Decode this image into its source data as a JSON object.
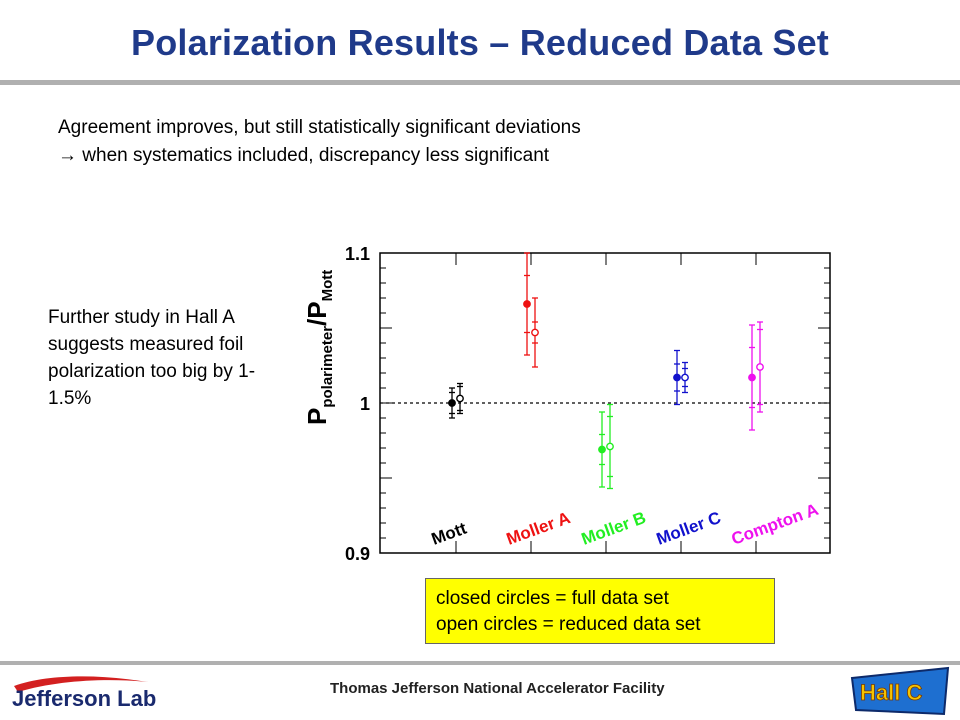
{
  "slide": {
    "title": "Polarization Results – Reduced Data Set",
    "intro_line1": "Agreement improves, but still statistically significant deviations",
    "intro_line2": "→ when systematics included, discrepancy less significant",
    "side_note": "Further study in Hall A suggests measured foil polarization too big by 1-1.5%",
    "legend_line1": "closed circles = full data set",
    "legend_line2": "open circles = reduced data set",
    "footer": "Thomas Jefferson National Accelerator Facility",
    "logo_left": "Jefferson Lab",
    "logo_right": "Hall C"
  },
  "chart_data": {
    "type": "scatter",
    "ylabel_main": "P",
    "ylabel_sub1": "polarimeter",
    "ylabel_slash": "/P",
    "ylabel_sub2": "Mott",
    "ylim": [
      0.9,
      1.1
    ],
    "yticks": [
      "1.1",
      "1",
      "0.9"
    ],
    "reference_line": 1.0,
    "categories": [
      {
        "label": "Mott",
        "color": "#000000"
      },
      {
        "label": "Moller A",
        "color": "#ee1111"
      },
      {
        "label": "Moller B",
        "color": "#22ee22"
      },
      {
        "label": "Moller C",
        "color": "#1111cc"
      },
      {
        "label": "Compton A",
        "color": "#ee11ee"
      }
    ],
    "series": [
      {
        "name": "full data set",
        "marker": "closed",
        "values": [
          1.0,
          1.066,
          0.969,
          1.017,
          1.017
        ],
        "err_stat": [
          0.007,
          0.019,
          0.01,
          0.009,
          0.02
        ],
        "err_tot": [
          0.01,
          0.034,
          0.025,
          0.018,
          0.035
        ]
      },
      {
        "name": "reduced data set",
        "marker": "open",
        "values": [
          1.003,
          1.047,
          0.971,
          1.017,
          1.024
        ],
        "err_stat": [
          0.008,
          0.007,
          0.02,
          0.006,
          0.025
        ],
        "err_tot": [
          0.01,
          0.023,
          0.028,
          0.01,
          0.03
        ]
      }
    ],
    "grid": false
  }
}
